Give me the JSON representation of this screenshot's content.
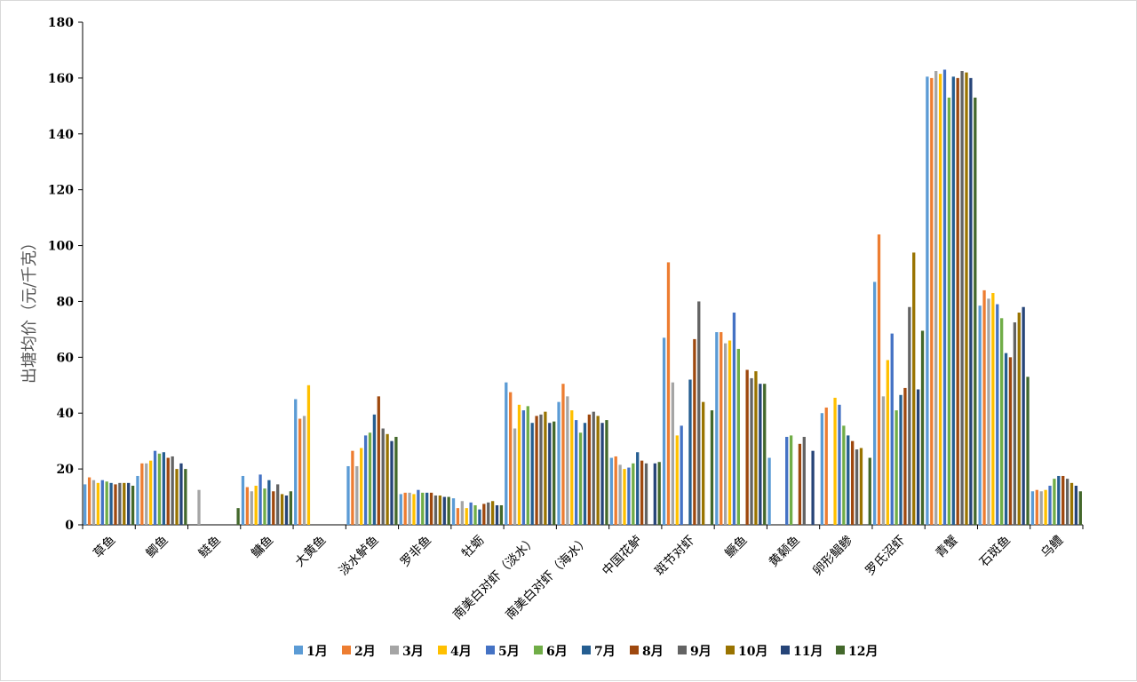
{
  "chart_data": {
    "type": "bar",
    "ylabel": "出塘均价（元/千克）",
    "ylim": [
      0,
      180
    ],
    "yticks": [
      0,
      20,
      40,
      60,
      80,
      100,
      120,
      140,
      160,
      180
    ],
    "grid": false,
    "legend_position": "bottom",
    "categories": [
      "草鱼",
      "鲫鱼",
      "鲢鱼",
      "鳙鱼",
      "大黄鱼",
      "淡水鲈鱼",
      "罗非鱼",
      "牡蛎",
      "南美白对虾（淡水）",
      "南美白对虾（海水）",
      "中国花鲈",
      "斑节对虾",
      "鳜鱼",
      "黄颡鱼",
      "卵形鲳鲹",
      "罗氏沼虾",
      "青蟹",
      "石斑鱼",
      "乌鳢"
    ],
    "series": [
      {
        "name": "1月",
        "color": "#5b9bd5",
        "values": [
          14.5,
          17.5,
          null,
          17.5,
          45,
          21,
          11,
          9.5,
          51,
          44,
          24,
          67,
          69,
          24,
          40,
          87,
          160.5,
          78.5,
          12
        ]
      },
      {
        "name": "2月",
        "color": "#ed7d31",
        "values": [
          17,
          22,
          null,
          13.5,
          38,
          26.5,
          11.5,
          6,
          47.5,
          50.5,
          24.5,
          94,
          69,
          null,
          42,
          104,
          160,
          84,
          12.5
        ]
      },
      {
        "name": "3月",
        "color": "#a5a5a5",
        "values": [
          16,
          22,
          12.5,
          12,
          39,
          21,
          11.5,
          8.5,
          34.5,
          46,
          21.5,
          51,
          65,
          null,
          null,
          46,
          162.5,
          81,
          12
        ]
      },
      {
        "name": "4月",
        "color": "#ffc000",
        "values": [
          15,
          23,
          null,
          14,
          50,
          27.5,
          11,
          6,
          43,
          41,
          20,
          32,
          66,
          null,
          45.5,
          59,
          161.5,
          83,
          12.5
        ]
      },
      {
        "name": "5月",
        "color": "#4472c4",
        "values": [
          16,
          26.5,
          null,
          18,
          null,
          32,
          12.5,
          8,
          41,
          37.5,
          20.5,
          35.5,
          76,
          31.5,
          43,
          68.5,
          163,
          79,
          14
        ]
      },
      {
        "name": "6月",
        "color": "#70ad47",
        "values": [
          15.5,
          25.5,
          null,
          13,
          null,
          33,
          11.5,
          7,
          42.5,
          33,
          22,
          null,
          63,
          32,
          35.5,
          41,
          153,
          74,
          16.5
        ]
      },
      {
        "name": "7月",
        "color": "#255e91",
        "values": [
          15,
          26,
          null,
          16,
          null,
          39.5,
          11.5,
          5.5,
          36.5,
          36.5,
          26,
          52,
          null,
          null,
          32,
          46.5,
          160.5,
          61.5,
          17.5
        ]
      },
      {
        "name": "8月",
        "color": "#9e480e",
        "values": [
          14.5,
          24,
          null,
          12,
          null,
          46,
          11.5,
          7.5,
          39,
          39.5,
          23,
          66.5,
          55.5,
          29,
          30,
          49,
          160,
          60,
          17.5
        ]
      },
      {
        "name": "9月",
        "color": "#636363",
        "values": [
          15,
          24.5,
          null,
          14.5,
          null,
          34.5,
          10.5,
          8,
          39.5,
          40.5,
          22,
          80,
          52.5,
          31.5,
          27,
          78,
          162.5,
          72.5,
          16.5
        ]
      },
      {
        "name": "10月",
        "color": "#997300",
        "values": [
          15,
          20,
          null,
          11,
          null,
          32.5,
          10.5,
          8.5,
          40.5,
          39,
          null,
          44,
          55,
          null,
          27.5,
          97.5,
          162,
          76,
          15
        ]
      },
      {
        "name": "11月",
        "color": "#264478",
        "values": [
          15,
          22,
          null,
          10.5,
          null,
          30,
          10,
          7,
          36.5,
          36.5,
          22,
          null,
          50.5,
          26.5,
          null,
          48.5,
          160,
          78,
          14
        ]
      },
      {
        "name": "12月",
        "color": "#43682b",
        "values": [
          14,
          20,
          6,
          12,
          null,
          31.5,
          10,
          7,
          37,
          37.5,
          22.5,
          41,
          50.5,
          null,
          24,
          69.5,
          153,
          53,
          12
        ]
      }
    ]
  }
}
